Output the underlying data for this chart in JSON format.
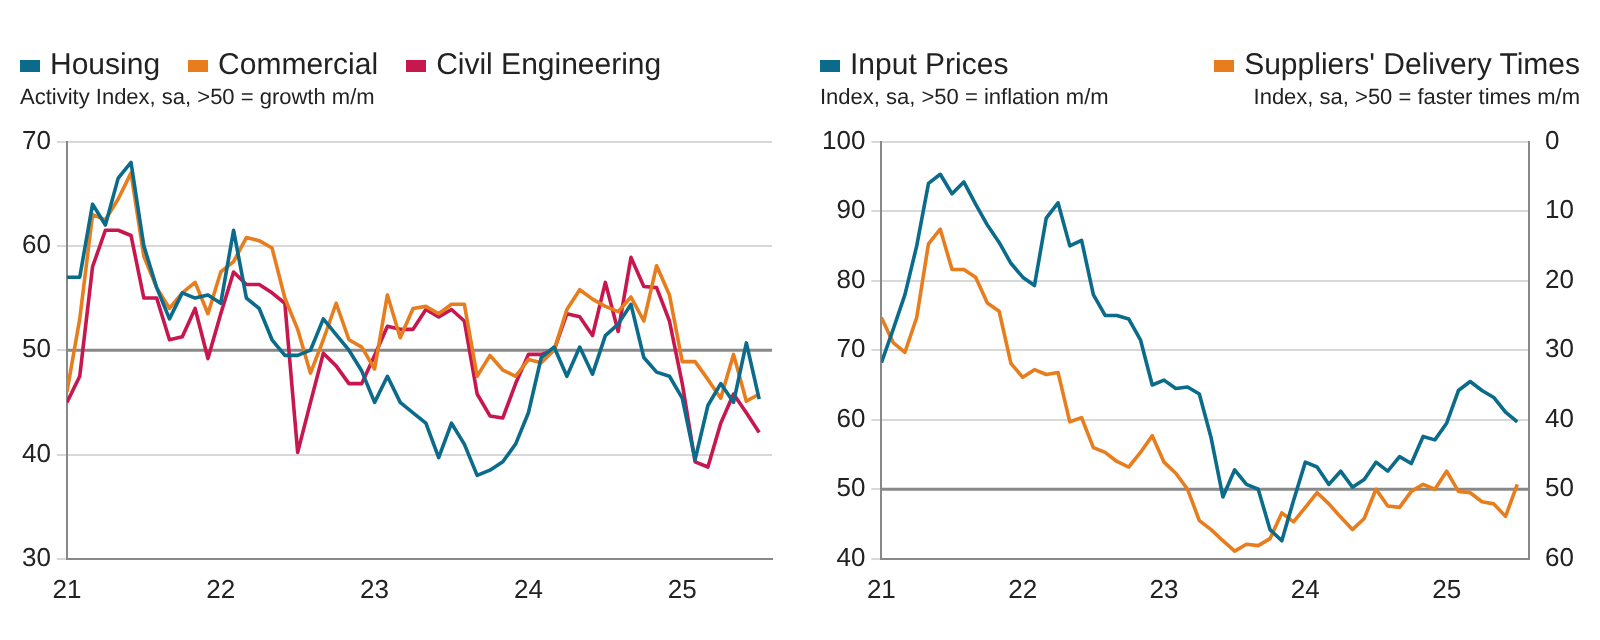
{
  "chart_data": [
    {
      "type": "line",
      "ylabel": "Activity Index, sa, >50 = growth m/m",
      "x": [
        "2021-01",
        "2021-02",
        "2021-03",
        "2021-04",
        "2021-05",
        "2021-06",
        "2021-07",
        "2021-08",
        "2021-09",
        "2021-10",
        "2021-11",
        "2021-12",
        "2022-01",
        "2022-02",
        "2022-03",
        "2022-04",
        "2022-05",
        "2022-06",
        "2022-07",
        "2022-08",
        "2022-09",
        "2022-10",
        "2022-11",
        "2022-12",
        "2023-01",
        "2023-02",
        "2023-03",
        "2023-04",
        "2023-05",
        "2023-06",
        "2023-07",
        "2023-08",
        "2023-09",
        "2023-10",
        "2023-11",
        "2023-12",
        "2024-01",
        "2024-02",
        "2024-03",
        "2024-04",
        "2024-05",
        "2024-06",
        "2024-07",
        "2024-08",
        "2024-09",
        "2024-10",
        "2024-11",
        "2024-12",
        "2025-01",
        "2025-02",
        "2025-03",
        "2025-04",
        "2025-05",
        "2025-06",
        "2025-07"
      ],
      "series": [
        {
          "name": "Housing",
          "color": "#0b6b8a",
          "values": [
            57,
            57,
            64,
            62,
            66.5,
            68,
            60,
            56,
            53,
            55.5,
            55,
            55.3,
            54.5,
            61.5,
            55,
            54,
            51,
            49.5,
            49.5,
            50,
            53,
            51.5,
            50,
            48,
            45,
            47.5,
            45,
            44,
            43,
            39.7,
            43,
            41,
            38,
            38.5,
            39.3,
            41,
            44,
            49.3,
            50.3,
            47.5,
            50.3,
            47.7,
            51.4,
            52.5,
            54.4,
            49.3,
            47.9,
            47.5,
            45.4,
            39.5,
            44.7,
            46.8,
            45,
            50.7,
            45.3
          ]
        },
        {
          "name": "Commercial",
          "color": "#e87d1e",
          "values": [
            46,
            53,
            63,
            62.5,
            64.5,
            67,
            59,
            56,
            54,
            55.5,
            56.5,
            53.5,
            57.5,
            58.5,
            60.8,
            60.5,
            59.8,
            55,
            52,
            47.8,
            51,
            54.5,
            51,
            50.3,
            48.2,
            55.3,
            51.2,
            54,
            54.2,
            53.5,
            54.4,
            54.4,
            47.5,
            49.5,
            48.1,
            47.5,
            49.1,
            48.8,
            50,
            53.9,
            55.8,
            54.9,
            54.2,
            53.7,
            55.1,
            52.8,
            58.1,
            55.3,
            48.9,
            48.9,
            47.2,
            45.4,
            49.6,
            45.1,
            45.8
          ]
        },
        {
          "name": "Civil Engineering",
          "color": "#c8174f",
          "values": [
            45,
            47.5,
            58,
            61.5,
            61.5,
            61,
            55,
            55,
            51,
            51.3,
            54,
            49.2,
            53.5,
            57.5,
            56.3,
            56.3,
            55.5,
            54.5,
            40.2,
            45,
            49.7,
            48.5,
            46.8,
            46.8,
            49.5,
            52.3,
            52,
            52,
            53.9,
            53.2,
            53.9,
            52.8,
            45.8,
            43.7,
            43.5,
            46.8,
            49.6,
            49.6,
            50,
            53.5,
            53.2,
            51.4,
            56.5,
            51.8,
            58.9,
            56.1,
            56,
            52.8,
            46.8,
            39.3,
            38.8,
            43,
            45.8,
            44,
            42.1
          ]
        }
      ],
      "xlim": [
        "2021-01",
        "2025-08"
      ],
      "xticks": [
        {
          "value": "2021-01",
          "label": "21"
        },
        {
          "value": "2022-01",
          "label": "22"
        },
        {
          "value": "2023-01",
          "label": "23"
        },
        {
          "value": "2024-01",
          "label": "24"
        },
        {
          "value": "2025-01",
          "label": "25"
        }
      ],
      "ylim": [
        30,
        70
      ],
      "yticks": [
        30,
        40,
        50,
        60,
        70
      ],
      "ref_lines": [
        {
          "axis": "y",
          "value": 50,
          "color": "#888888"
        }
      ],
      "grid": "y",
      "legend": "top left"
    },
    {
      "type": "line",
      "ylabel": "Index, sa, >50 = inflation m/m",
      "y2label": "Index, sa, >50 = faster times m/m",
      "x": [
        "2021-01",
        "2021-02",
        "2021-03",
        "2021-04",
        "2021-05",
        "2021-06",
        "2021-07",
        "2021-08",
        "2021-09",
        "2021-10",
        "2021-11",
        "2021-12",
        "2022-01",
        "2022-02",
        "2022-03",
        "2022-04",
        "2022-05",
        "2022-06",
        "2022-07",
        "2022-08",
        "2022-09",
        "2022-10",
        "2022-11",
        "2022-12",
        "2023-01",
        "2023-02",
        "2023-03",
        "2023-04",
        "2023-05",
        "2023-06",
        "2023-07",
        "2023-08",
        "2023-09",
        "2023-10",
        "2023-11",
        "2023-12",
        "2024-01",
        "2024-02",
        "2024-03",
        "2024-04",
        "2024-05",
        "2024-06",
        "2024-07",
        "2024-08",
        "2024-09",
        "2024-10",
        "2024-11",
        "2024-12",
        "2025-01",
        "2025-02",
        "2025-03",
        "2025-04",
        "2025-05",
        "2025-06",
        "2025-07"
      ],
      "series": [
        {
          "name": "Input Prices",
          "color": "#0b6b8a",
          "values": [
            68.2,
            73,
            78,
            85,
            94,
            95.3,
            92.5,
            94.2,
            91,
            88,
            85.5,
            82.5,
            80.5,
            79.3,
            89,
            91.2,
            85,
            85.8,
            78,
            75,
            75,
            74.5,
            71.5,
            65,
            65.7,
            64.5,
            64.7,
            63.7,
            57.4,
            48.9,
            52.8,
            50.7,
            50,
            44.2,
            42.6,
            48.4,
            53.9,
            53.2,
            50.7,
            52.6,
            50.3,
            51.4,
            53.9,
            52.6,
            54.7,
            53.7,
            57.6,
            57.1,
            59.5,
            64.2,
            65.5,
            64.2,
            63.2,
            61.1,
            59.7
          ]
        },
        {
          "name": "Suppliers' Delivery Times",
          "color": "#e87d1e",
          "axis": "y2",
          "values": [
            25.3,
            28.9,
            30.3,
            25.3,
            14.7,
            12.6,
            18.4,
            18.4,
            19.5,
            23.2,
            24.4,
            31.9,
            33.9,
            32.8,
            33.5,
            33.2,
            40.3,
            39.7,
            44,
            44.7,
            46,
            46.8,
            44.7,
            42.3,
            46.1,
            47.7,
            50,
            54.5,
            55.8,
            57.4,
            58.9,
            57.9,
            58.1,
            57.1,
            53.4,
            54.7,
            52.6,
            50.5,
            52.1,
            54,
            55.8,
            54.2,
            50,
            52.4,
            52.6,
            50.3,
            49.3,
            50,
            47.4,
            50.3,
            50.5,
            51.8,
            52.1,
            53.9,
            49.3
          ]
        }
      ],
      "xlim": [
        "2021-01",
        "2025-08"
      ],
      "xticks": [
        {
          "value": "2021-01",
          "label": "21"
        },
        {
          "value": "2022-01",
          "label": "22"
        },
        {
          "value": "2023-01",
          "label": "23"
        },
        {
          "value": "2024-01",
          "label": "24"
        },
        {
          "value": "2025-01",
          "label": "25"
        }
      ],
      "ylim": [
        40,
        100
      ],
      "yticks": [
        40,
        50,
        60,
        70,
        80,
        90,
        100
      ],
      "y2lim": [
        60,
        0
      ],
      "y2ticks": [
        0,
        10,
        20,
        30,
        40,
        50,
        60
      ],
      "ref_lines": [
        {
          "axis": "y",
          "value": 50,
          "color": "#888888"
        }
      ],
      "grid": "y",
      "legend": "top"
    }
  ]
}
